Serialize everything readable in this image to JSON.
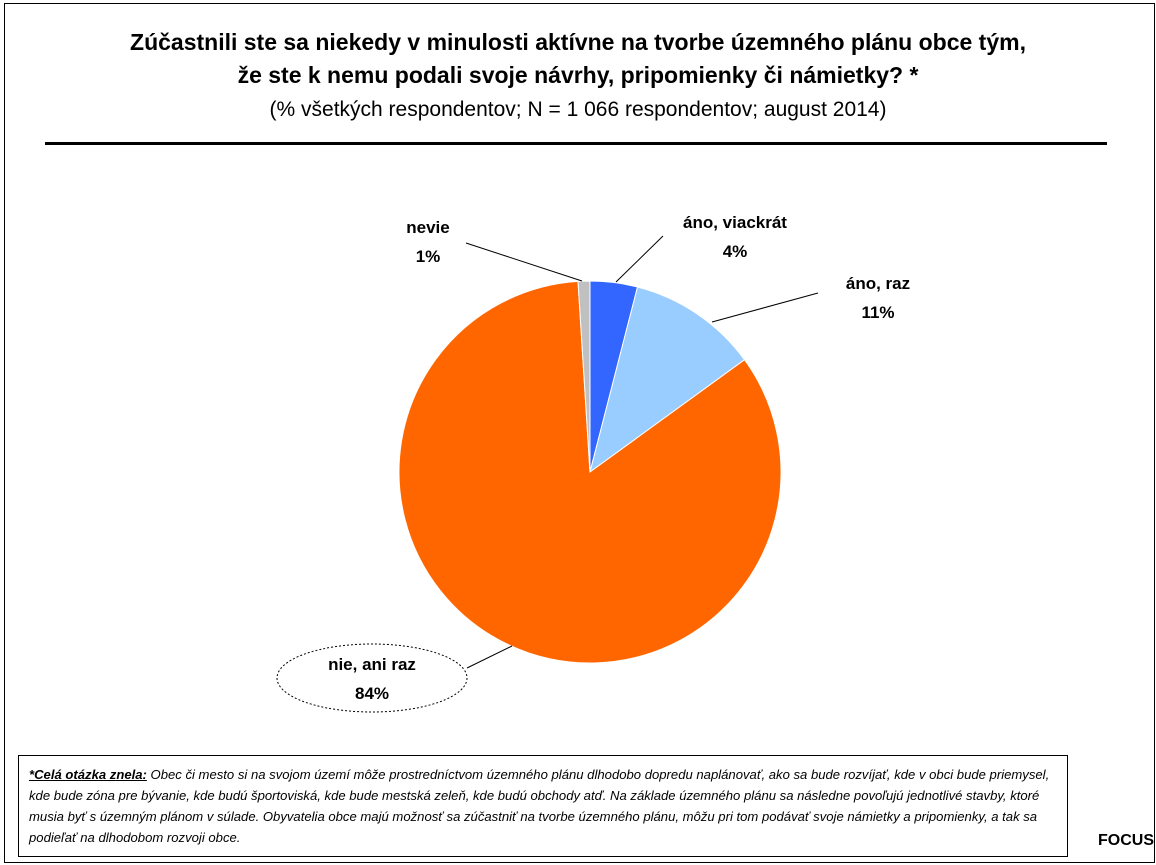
{
  "header": {
    "title_line1": "Zúčastnili ste sa niekedy v minulosti aktívne na tvorbe územného plánu obce tým,",
    "title_line2": "že ste k nemu podali svoje návrhy, pripomienky či námietky? *",
    "subtitle": "(% všetkých respondentov; N = 1 066 respondentov; august 2014)"
  },
  "chart_data": {
    "type": "pie",
    "slices": [
      {
        "label": "áno, viackrát",
        "value": 4,
        "value_label": "4%",
        "color": "#3366FF"
      },
      {
        "label": "áno, raz",
        "value": 11,
        "value_label": "11%",
        "color": "#99CCFF"
      },
      {
        "label": "nie, ani raz",
        "value": 84,
        "value_label": "84%",
        "color": "#FF6600"
      },
      {
        "label": "nevie",
        "value": 1,
        "value_label": "1%",
        "color": "#C0C0C0"
      }
    ],
    "start_angle": "12 o'clock",
    "direction": "clockwise",
    "highlighted": "nie, ani raz"
  },
  "footnote": {
    "lead": "*Celá otázka znela:",
    "text": "Obec či mesto si na svojom území môže prostredníctvom územného plánu dlhodobo dopredu naplánovať, ako sa bude rozvíjať, kde v obci bude priemysel, kde bude zóna pre bývanie, kde budú športoviská, kde bude mestská zeleň, kde budú obchody atď. Na základe územného plánu sa následne povoľujú jednotlivé stavby, ktoré musia byť s územným plánom v súlade. Obyvatelia obce majú možnosť sa zúčastniť na tvorbe územného plánu, môžu pri tom podávať svoje námietky a pripomienky, a tak sa podieľať na dlhodobom rozvoji obce."
  },
  "source": "FOCUS"
}
